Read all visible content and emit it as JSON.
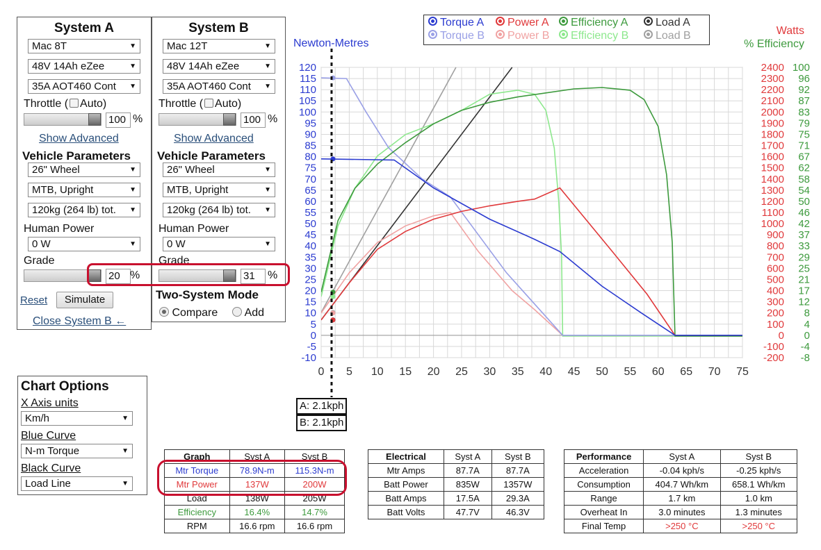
{
  "systemA": {
    "title": "System A",
    "motor": "Mac 8T",
    "battery": "48V 14Ah eZee",
    "controller": "35A AOT460 Cont",
    "throttle_label": "Throttle (",
    "auto_label": "Auto)",
    "throttle_value": "100",
    "pct": "%",
    "show_advanced": "Show Advanced",
    "vehicle_params": "Vehicle Parameters",
    "wheel": "26\"  Wheel",
    "position": "MTB, Upright",
    "weight": "120kg (264 lb) tot.",
    "human_power_label": "Human Power",
    "human_power": "0 W",
    "grade_label": "Grade",
    "grade_value": "20",
    "reset": "Reset",
    "simulate": "Simulate",
    "close_b": "Close System B ←"
  },
  "systemB": {
    "title": "System B",
    "motor": "Mac 12T",
    "battery": "48V 14Ah eZee",
    "controller": "35A AOT460 Cont",
    "throttle_label": "Throttle (",
    "auto_label": "Auto)",
    "throttle_value": "100",
    "pct": "%",
    "show_advanced": "Show Advanced",
    "vehicle_params": "Vehicle Parameters",
    "wheel": "26\"  Wheel",
    "position": "MTB, Upright",
    "weight": "120kg (264 lb) tot.",
    "human_power_label": "Human Power",
    "human_power": "0 W",
    "grade_label": "Grade",
    "grade_value": "31",
    "two_system_mode": "Two-System Mode",
    "compare": "Compare",
    "add": "Add"
  },
  "chart_options": {
    "title": "Chart Options",
    "x_axis_label": "X Axis units",
    "x_axis_value": "Km/h",
    "blue_label": "Blue Curve",
    "blue_value": "N-m Torque",
    "black_label": "Black Curve",
    "black_value": "Load Line"
  },
  "legend": {
    "torque_a": "Torque A",
    "power_a": "Power A",
    "eff_a": "Efficiency A",
    "load_a": "Load A",
    "torque_b": "Torque B",
    "power_b": "Power B",
    "eff_b": "Efficiency B",
    "load_b": "Load B"
  },
  "axis_titles": {
    "left": "Newton-Metres",
    "watts": "Watts",
    "eff": "% Efficiency"
  },
  "readouts": {
    "a": "A: 2.1kph",
    "b": "B: 2.1kph"
  },
  "colors": {
    "torque_a": "#2b3bd0",
    "torque_b": "#9aa0e6",
    "power_a": "#e0393b",
    "power_b": "#f0a3a3",
    "eff_a": "#3d9a3d",
    "eff_b": "#8de88d",
    "load_a": "#333333",
    "load_b": "#a0a0a0",
    "callout": "#c8102e"
  },
  "chart_data": {
    "type": "line",
    "xlabel": "",
    "x_ticks": [
      0,
      5,
      10,
      15,
      20,
      25,
      30,
      35,
      40,
      45,
      50,
      55,
      60,
      65,
      70,
      75
    ],
    "xlim": [
      0,
      75
    ],
    "ylim_left": [
      -10,
      120
    ],
    "ylim_watts": [
      -200,
      2400
    ],
    "ylim_eff": [
      -8,
      100
    ],
    "left_ticks": [
      -10,
      -5,
      0,
      5,
      10,
      15,
      20,
      25,
      30,
      35,
      40,
      45,
      50,
      55,
      60,
      65,
      70,
      75,
      80,
      85,
      90,
      95,
      100,
      105,
      110,
      115,
      120
    ],
    "watts_ticks": [
      -200,
      -100,
      0,
      100,
      200,
      300,
      400,
      500,
      600,
      700,
      800,
      900,
      1000,
      1100,
      1200,
      1300,
      1400,
      1500,
      1600,
      1700,
      1800,
      1900,
      2000,
      2100,
      2200,
      2300,
      2400
    ],
    "eff_ticks": [
      "-8",
      "-4",
      "0",
      "4",
      "8",
      "12",
      "17",
      "21",
      "25",
      "29",
      "33",
      "37",
      "42",
      "46",
      "50",
      "54",
      "58",
      "62",
      "67",
      "71",
      "75",
      "79",
      "83",
      "87",
      "92",
      "96",
      "100"
    ],
    "series": [
      {
        "name": "Torque A",
        "axis": "left",
        "points": [
          [
            0,
            79
          ],
          [
            13,
            78.5
          ],
          [
            20,
            66
          ],
          [
            30,
            52
          ],
          [
            38,
            43
          ],
          [
            42.5,
            37.5
          ],
          [
            50,
            22
          ],
          [
            57,
            10
          ],
          [
            63,
            0
          ],
          [
            75,
            0
          ]
        ]
      },
      {
        "name": "Torque B",
        "axis": "left",
        "points": [
          [
            0,
            115.3
          ],
          [
            4.5,
            115
          ],
          [
            8,
            100
          ],
          [
            12,
            84
          ],
          [
            18,
            70
          ],
          [
            23,
            62
          ],
          [
            28,
            45
          ],
          [
            33,
            28
          ],
          [
            38,
            14
          ],
          [
            43,
            0
          ],
          [
            75,
            0
          ]
        ]
      },
      {
        "name": "Power A",
        "axis": "watts",
        "points": [
          [
            0,
            137
          ],
          [
            5,
            470
          ],
          [
            10,
            770
          ],
          [
            15,
            930
          ],
          [
            20,
            1040
          ],
          [
            25,
            1110
          ],
          [
            30,
            1160
          ],
          [
            35,
            1200
          ],
          [
            38,
            1220
          ],
          [
            42.5,
            1320
          ],
          [
            52,
            740
          ],
          [
            58,
            370
          ],
          [
            63,
            0
          ],
          [
            75,
            0
          ]
        ]
      },
      {
        "name": "Power B",
        "axis": "watts",
        "points": [
          [
            0,
            200
          ],
          [
            5,
            560
          ],
          [
            10,
            830
          ],
          [
            15,
            980
          ],
          [
            20,
            1070
          ],
          [
            23,
            1100
          ],
          [
            28,
            750
          ],
          [
            34,
            400
          ],
          [
            38,
            230
          ],
          [
            43,
            0
          ],
          [
            75,
            0
          ]
        ]
      },
      {
        "name": "Efficiency A",
        "axis": "eff",
        "points": [
          [
            0,
            16.4
          ],
          [
            3,
            43
          ],
          [
            6,
            55
          ],
          [
            10,
            64
          ],
          [
            15,
            72
          ],
          [
            20,
            79
          ],
          [
            25,
            84
          ],
          [
            30,
            87
          ],
          [
            35,
            89
          ],
          [
            40,
            90.5
          ],
          [
            45,
            92
          ],
          [
            50,
            92.5
          ],
          [
            55,
            91.5
          ],
          [
            57.5,
            88
          ],
          [
            60,
            78
          ],
          [
            61.5,
            60
          ],
          [
            62.5,
            35
          ],
          [
            63,
            0
          ],
          [
            75,
            0
          ]
        ]
      },
      {
        "name": "Efficiency B",
        "axis": "eff",
        "points": [
          [
            0,
            14.7
          ],
          [
            3,
            41
          ],
          [
            6,
            55
          ],
          [
            10,
            67
          ],
          [
            15,
            75
          ],
          [
            20,
            79
          ],
          [
            25,
            84
          ],
          [
            30,
            90
          ],
          [
            35,
            91.5
          ],
          [
            38,
            90
          ],
          [
            40,
            84
          ],
          [
            41.5,
            70
          ],
          [
            42.3,
            50
          ],
          [
            42.8,
            30
          ],
          [
            43,
            0
          ],
          [
            75,
            0
          ]
        ]
      },
      {
        "name": "Load A",
        "axis": "watts",
        "points": [
          [
            0,
            138
          ],
          [
            34,
            2400
          ]
        ]
      },
      {
        "name": "Load B",
        "axis": "watts",
        "points": [
          [
            0,
            205
          ],
          [
            24,
            2400
          ]
        ]
      }
    ]
  },
  "tables": {
    "graph": {
      "headers": [
        "Graph",
        "Syst A",
        "Syst B"
      ],
      "rows": [
        [
          "Mtr Torque",
          "78.9N-m",
          "115.3N-m"
        ],
        [
          "Mtr Power",
          "137W",
          "200W"
        ],
        [
          "Load",
          "138W",
          "205W"
        ],
        [
          "Efficiency",
          "16.4%",
          "14.7%"
        ],
        [
          "RPM",
          "16.6 rpm",
          "16.6 rpm"
        ]
      ]
    },
    "electrical": {
      "headers": [
        "Electrical",
        "Syst A",
        "Syst B"
      ],
      "rows": [
        [
          "Mtr Amps",
          "87.7A",
          "87.7A"
        ],
        [
          "Batt Power",
          "835W",
          "1357W"
        ],
        [
          "Batt Amps",
          "17.5A",
          "29.3A"
        ],
        [
          "Batt Volts",
          "47.7V",
          "46.3V"
        ]
      ]
    },
    "performance": {
      "headers": [
        "Performance",
        "Syst A",
        "Syst B"
      ],
      "rows": [
        [
          "Acceleration",
          "-0.04 kph/s",
          "-0.25 kph/s"
        ],
        [
          "Consumption",
          "404.7 Wh/km",
          "658.1 Wh/km"
        ],
        [
          "Range",
          "1.7 km",
          "1.0 km"
        ],
        [
          "Overheat In",
          "3.0 minutes",
          "1.3 minutes"
        ],
        [
          "Final Temp",
          ">250 °C",
          ">250 °C"
        ]
      ]
    }
  }
}
